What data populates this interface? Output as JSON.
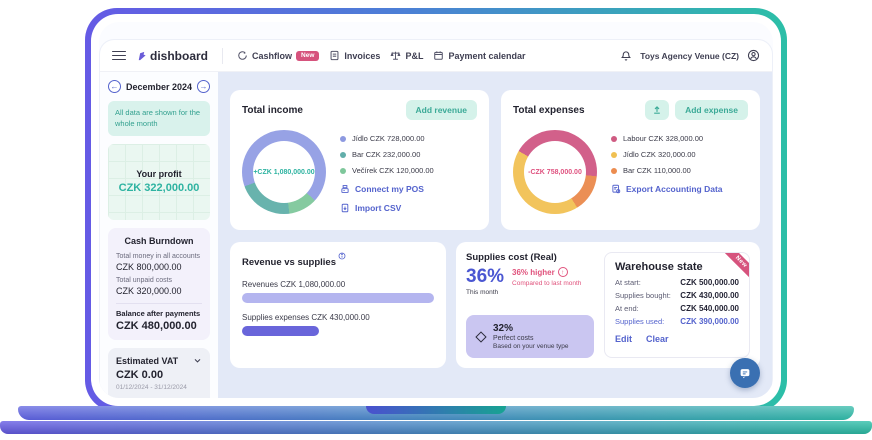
{
  "nav": {
    "logo_text": "dishboard",
    "items": [
      {
        "label": "Cashflow",
        "badge": "New"
      },
      {
        "label": "Invoices"
      },
      {
        "label": "P&L"
      },
      {
        "label": "Payment calendar"
      }
    ],
    "venue": "Toys Agency Venue (CZ)"
  },
  "sidebar": {
    "month": "December 2024",
    "prev": "←",
    "next": "→",
    "notice": "All data are shown for the whole month",
    "profit": {
      "label": "Your profit",
      "value": "CZK 322,000.00"
    },
    "cash_burndown": {
      "title": "Cash Burndown",
      "rows": [
        {
          "label": "Total money in all accounts",
          "value": "CZK 800,000.00"
        },
        {
          "label": "Total unpaid costs",
          "value": "CZK 320,000.00"
        }
      ],
      "balance_label": "Balance after payments",
      "balance_value": "CZK 480,000.00"
    },
    "vat": {
      "title": "Estimated VAT",
      "value": "CZK 0.00",
      "period": "01/12/2024 - 31/12/2024"
    }
  },
  "income_card": {
    "title": "Total income",
    "add_button": "Add revenue",
    "center": "+CZK 1,080,000.00",
    "legend": [
      {
        "label": "Jídlo CZK 728,000.00",
        "color": "#8d99e0"
      },
      {
        "label": "Bar CZK 232,000.00",
        "color": "#62aeaa"
      },
      {
        "label": "Večírek CZK 120,000.00",
        "color": "#7ec79b"
      }
    ],
    "donut": {
      "from_deg": 250,
      "segments": [
        {
          "color": "#97a2e5",
          "pct": 67.4
        },
        {
          "color": "#85caa0",
          "pct": 11.1
        },
        {
          "color": "#68b3ad",
          "pct": 21.5
        }
      ]
    },
    "pos_link": "Connect my POS",
    "csv_link": "Import CSV"
  },
  "expenses_card": {
    "title": "Total expenses",
    "add_button": "Add expense",
    "center": "-CZK 758,000.00",
    "legend": [
      {
        "label": "Labour CZK 328,000.00",
        "color": "#cf5b82"
      },
      {
        "label": "Jídlo CZK 320,000.00",
        "color": "#f0c052"
      },
      {
        "label": "Bar CZK 110,000.00",
        "color": "#ec8c4f"
      }
    ],
    "donut": {
      "from_deg": 300,
      "segments": [
        {
          "color": "#d2608a",
          "pct": 43.3
        },
        {
          "color": "#eb8f55",
          "pct": 14.5
        },
        {
          "color": "#f2c45c",
          "pct": 42.2
        }
      ]
    },
    "export_link": "Export Accounting Data"
  },
  "revsup": {
    "title": "Revenue vs supplies",
    "rows": [
      {
        "label": "Revenues CZK 1,080,000.00",
        "color": "#b4b5ef",
        "pct": 100
      },
      {
        "label": "Supplies expenses CZK 430,000.00",
        "color": "#6965da",
        "pct": 40
      }
    ]
  },
  "supplies_cost": {
    "title": "Supplies cost (Real)",
    "big": "36%",
    "sub": "This month",
    "delta": "36% higher",
    "delta_icon": "↑",
    "delta_sub": "Compared to last month",
    "benchmark": {
      "pct": "32%",
      "line1": "Perfect costs",
      "line2": "Based on your venue type"
    }
  },
  "warehouse": {
    "ribbon": "New",
    "title": "Warehouse state",
    "rows": [
      {
        "label": "At start:",
        "value": "CZK 500,000.00"
      },
      {
        "label": "Supplies bought:",
        "value": "CZK 430,000.00"
      },
      {
        "label": "At end:",
        "value": "CZK 540,000.00"
      },
      {
        "label": "Supplies used:",
        "value": "CZK 390,000.00"
      }
    ],
    "edit": "Edit",
    "clear": "Clear"
  },
  "colors": {
    "accent_teal": "#2eb3a1",
    "accent_indigo": "#5463cd",
    "accent_pink": "#d6537d"
  },
  "chart_data": [
    {
      "type": "pie",
      "title": "Total income",
      "labels": [
        "Jídlo",
        "Bar",
        "Večírek"
      ],
      "values": [
        728000,
        232000,
        120000
      ],
      "total": 1080000,
      "total_label": "+CZK 1,080,000.00",
      "currency": "CZK",
      "legend_position": "right"
    },
    {
      "type": "pie",
      "title": "Total expenses",
      "labels": [
        "Labour",
        "Jídlo",
        "Bar"
      ],
      "values": [
        328000,
        320000,
        110000
      ],
      "total": 758000,
      "total_label": "-CZK 758,000.00",
      "currency": "CZK",
      "legend_position": "right"
    },
    {
      "type": "bar",
      "title": "Revenue vs supplies",
      "categories": [
        "Revenues",
        "Supplies expenses"
      ],
      "values": [
        1080000,
        430000
      ],
      "currency": "CZK",
      "orientation": "horizontal"
    }
  ]
}
